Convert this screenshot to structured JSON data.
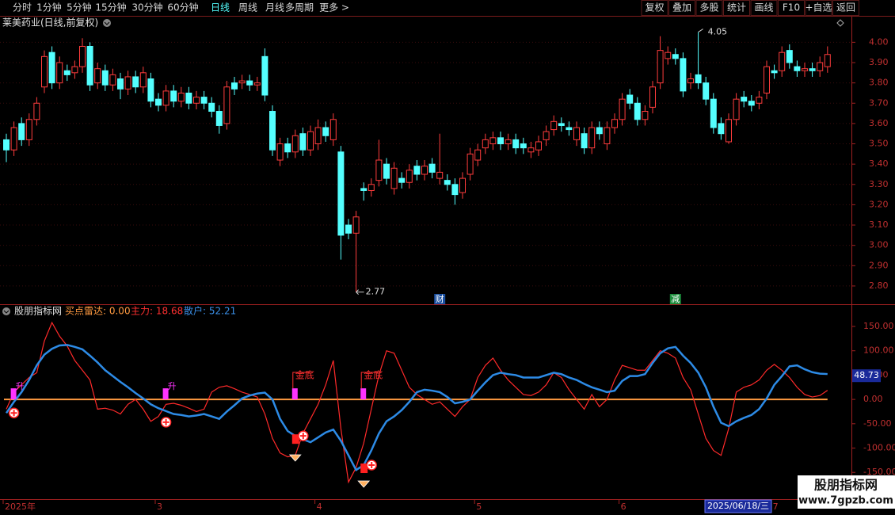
{
  "toolbar": {
    "left": [
      "分时",
      "1分钟",
      "5分钟",
      "15分钟",
      "30分钟",
      "60分钟",
      "日线",
      "周线",
      "月线",
      "多周期",
      "更多 >"
    ],
    "right": [
      "复权",
      "叠加",
      "多股",
      "统计",
      "画线",
      "F10",
      "+自选",
      "返回"
    ]
  },
  "chart_data": [
    {
      "type": "candlestick",
      "title": "莱美药业(日线,前复权)",
      "categories": [
        "2025年",
        null,
        null,
        null,
        null,
        null,
        null,
        null,
        null,
        null,
        null,
        null,
        null,
        null,
        null,
        null,
        null,
        null,
        null,
        null,
        "3",
        null,
        null,
        null,
        null,
        null,
        null,
        null,
        null,
        null,
        null,
        null,
        null,
        null,
        null,
        null,
        null,
        null,
        null,
        null,
        null,
        "4",
        null,
        null,
        null,
        null,
        null,
        null,
        null,
        null,
        null,
        null,
        null,
        null,
        null,
        null,
        null,
        null,
        null,
        null,
        null,
        null,
        "5",
        null,
        null,
        null,
        null,
        null,
        null,
        null,
        null,
        null,
        null,
        null,
        null,
        null,
        null,
        null,
        null,
        null,
        null,
        "6",
        null,
        null,
        null,
        null,
        null,
        null,
        null,
        null,
        null,
        null,
        null,
        null,
        null,
        null,
        null,
        null,
        null,
        null,
        null,
        "7",
        null,
        null,
        null,
        null,
        null,
        null,
        null
      ],
      "open": [
        3.52,
        3.47,
        3.6,
        3.52,
        3.62,
        3.78,
        3.95,
        3.8,
        3.86,
        3.85,
        3.88,
        3.98,
        3.8,
        3.86,
        3.79,
        3.82,
        3.77,
        3.83,
        3.78,
        3.82,
        3.72,
        3.69,
        3.76,
        3.71,
        3.75,
        3.7,
        3.73,
        3.7,
        3.66,
        3.6,
        3.8,
        3.8,
        3.81,
        3.79,
        3.93,
        3.66,
        3.42,
        3.5,
        3.46,
        3.55,
        3.47,
        3.5,
        3.58,
        3.52,
        3.46,
        3.1,
        3.06,
        3.28,
        3.27,
        3.32,
        3.4,
        3.28,
        3.33,
        3.31,
        3.39,
        3.35,
        3.4,
        3.33,
        3.32,
        3.3,
        3.26,
        3.35,
        3.42,
        3.48,
        3.5,
        3.53,
        3.5,
        3.52,
        3.5,
        3.46,
        3.47,
        3.52,
        3.57,
        3.6,
        3.58,
        3.52,
        3.55,
        3.48,
        3.58,
        3.5,
        3.58,
        3.62,
        3.74,
        3.7,
        3.62,
        3.68,
        3.8,
        3.92,
        3.94,
        3.92,
        3.8,
        3.84,
        3.8,
        3.72,
        3.6,
        3.51,
        3.62,
        3.73,
        3.71,
        3.7,
        3.75,
        3.86,
        3.86,
        3.96,
        3.88,
        3.86,
        3.87,
        3.86,
        3.88
      ],
      "high": [
        3.55,
        3.61,
        3.63,
        3.65,
        3.73,
        3.96,
        3.98,
        3.93,
        3.89,
        3.91,
        4.02,
        4.0,
        3.9,
        3.89,
        3.87,
        3.85,
        3.86,
        3.86,
        3.88,
        3.85,
        3.75,
        3.79,
        3.79,
        3.78,
        3.78,
        3.76,
        3.76,
        3.73,
        3.69,
        3.81,
        3.83,
        3.84,
        3.84,
        3.83,
        3.97,
        3.69,
        3.53,
        3.53,
        3.57,
        3.58,
        3.59,
        3.62,
        3.61,
        3.65,
        3.49,
        3.13,
        3.17,
        3.31,
        3.33,
        3.52,
        3.43,
        3.41,
        3.36,
        3.4,
        3.42,
        3.42,
        3.43,
        3.55,
        3.35,
        3.33,
        3.36,
        3.48,
        3.5,
        3.55,
        3.56,
        3.56,
        3.55,
        3.55,
        3.53,
        3.51,
        3.54,
        3.59,
        3.64,
        3.63,
        3.61,
        3.61,
        3.58,
        3.61,
        3.61,
        3.61,
        3.65,
        3.75,
        3.77,
        3.73,
        3.69,
        3.81,
        4.03,
        3.98,
        3.97,
        3.95,
        3.85,
        4.05,
        3.83,
        3.75,
        3.63,
        3.65,
        3.75,
        3.76,
        3.74,
        3.76,
        3.91,
        3.89,
        3.98,
        3.99,
        3.91,
        3.9,
        3.9,
        3.93,
        3.98
      ],
      "low": [
        3.41,
        3.44,
        3.49,
        3.49,
        3.59,
        3.75,
        3.77,
        3.77,
        3.81,
        3.82,
        3.85,
        3.76,
        3.77,
        3.76,
        3.76,
        3.72,
        3.74,
        3.75,
        3.75,
        3.68,
        3.66,
        3.66,
        3.68,
        3.68,
        3.67,
        3.67,
        3.67,
        3.63,
        3.55,
        3.57,
        3.74,
        3.77,
        3.76,
        3.76,
        3.71,
        3.44,
        3.39,
        3.43,
        3.43,
        3.44,
        3.44,
        3.47,
        3.51,
        3.49,
        2.93,
        3.03,
        2.77,
        3.22,
        3.24,
        3.29,
        3.3,
        3.25,
        3.28,
        3.28,
        3.32,
        3.32,
        3.33,
        3.3,
        3.27,
        3.2,
        3.23,
        3.32,
        3.39,
        3.45,
        3.47,
        3.47,
        3.47,
        3.45,
        3.45,
        3.43,
        3.44,
        3.49,
        3.54,
        3.56,
        3.54,
        3.49,
        3.45,
        3.45,
        3.52,
        3.47,
        3.55,
        3.59,
        3.67,
        3.59,
        3.59,
        3.65,
        3.77,
        3.89,
        3.89,
        3.73,
        3.77,
        3.77,
        3.69,
        3.55,
        3.52,
        3.5,
        3.59,
        3.68,
        3.66,
        3.67,
        3.72,
        3.82,
        3.83,
        3.87,
        3.83,
        3.83,
        3.83,
        3.83,
        3.85
      ],
      "close": [
        3.47,
        3.58,
        3.52,
        3.62,
        3.7,
        3.93,
        3.8,
        3.9,
        3.84,
        3.88,
        3.98,
        3.79,
        3.87,
        3.79,
        3.84,
        3.77,
        3.83,
        3.78,
        3.85,
        3.71,
        3.69,
        3.76,
        3.71,
        3.75,
        3.7,
        3.73,
        3.7,
        3.66,
        3.59,
        3.78,
        3.77,
        3.81,
        3.79,
        3.8,
        3.74,
        3.47,
        3.5,
        3.46,
        3.54,
        3.47,
        3.56,
        3.58,
        3.54,
        3.62,
        3.05,
        3.06,
        3.14,
        3.27,
        3.3,
        3.42,
        3.33,
        3.38,
        3.31,
        3.37,
        3.35,
        3.39,
        3.36,
        3.36,
        3.3,
        3.25,
        3.33,
        3.45,
        3.47,
        3.52,
        3.53,
        3.5,
        3.52,
        3.48,
        3.48,
        3.48,
        3.51,
        3.56,
        3.61,
        3.59,
        3.57,
        3.58,
        3.48,
        3.58,
        3.55,
        3.58,
        3.62,
        3.72,
        3.7,
        3.62,
        3.66,
        3.78,
        3.96,
        3.95,
        3.92,
        3.76,
        3.82,
        3.8,
        3.72,
        3.58,
        3.55,
        3.62,
        3.72,
        3.71,
        3.69,
        3.73,
        3.88,
        3.85,
        3.95,
        3.9,
        3.86,
        3.87,
        3.86,
        3.9,
        3.94
      ],
      "up_color": "#ff3c3c",
      "down_color": "#54ffff",
      "ylim": [
        2.71,
        4.06
      ],
      "yticks": [
        {
          "value": 2.8,
          "label": "2.80"
        },
        {
          "value": 2.9,
          "label": "2.90"
        },
        {
          "value": 3.0,
          "label": "3.00"
        },
        {
          "value": 3.1,
          "label": "3.10"
        },
        {
          "value": 3.2,
          "label": "3.20"
        },
        {
          "value": 3.3,
          "label": "3.30"
        },
        {
          "value": 3.4,
          "label": "3.40"
        },
        {
          "value": 3.5,
          "label": "3.50"
        },
        {
          "value": 3.6,
          "label": "3.60"
        },
        {
          "value": 3.7,
          "label": "3.70"
        },
        {
          "value": 3.8,
          "label": "3.80"
        },
        {
          "value": 3.9,
          "label": "3.90"
        },
        {
          "value": 4.0,
          "label": "4.00"
        }
      ],
      "grid": true,
      "events": [
        "财",
        "减"
      ]
    },
    {
      "type": "line",
      "title": "股朋指标网",
      "readouts": [
        "买点雷达: 0.00",
        "主力: 18.68",
        "散户: 52.21"
      ],
      "series": [
        {
          "name": "主力",
          "color": "#ff2a2a",
          "values": [
            -20,
            15,
            30,
            45,
            55,
            120,
            158,
            130,
            110,
            80,
            60,
            40,
            -20,
            -18,
            -22,
            -30,
            -10,
            0,
            -20,
            -45,
            -35,
            -10,
            -8,
            -12,
            -18,
            -25,
            -20,
            15,
            25,
            28,
            22,
            15,
            10,
            5,
            -30,
            -80,
            -110,
            -118,
            -115,
            -70,
            -40,
            -10,
            30,
            80,
            -60,
            -170,
            -140,
            -90,
            -20,
            50,
            100,
            95,
            60,
            25,
            10,
            0,
            -10,
            -5,
            -20,
            -35,
            -15,
            0,
            45,
            70,
            85,
            60,
            40,
            25,
            10,
            8,
            15,
            30,
            55,
            45,
            20,
            0,
            -20,
            10,
            -15,
            0,
            40,
            70,
            65,
            60,
            60,
            80,
            100,
            95,
            85,
            45,
            20,
            -30,
            -80,
            -105,
            -115,
            -60,
            15,
            25,
            30,
            40,
            60,
            72,
            60,
            45,
            25,
            10,
            5,
            8,
            18.68
          ]
        },
        {
          "name": "散户",
          "color": "#2d8be6",
          "values": [
            -28,
            -5,
            15,
            40,
            70,
            92,
            104,
            111,
            112,
            108,
            103,
            90,
            76,
            60,
            48,
            36,
            25,
            13,
            2,
            -10,
            -18,
            -24,
            -30,
            -32,
            -35,
            -33,
            -30,
            -35,
            -40,
            -25,
            -12,
            2,
            8,
            12,
            14,
            0,
            -40,
            -65,
            -75,
            -82,
            -88,
            -78,
            -68,
            -62,
            -85,
            -115,
            -145,
            -135,
            -105,
            -70,
            -45,
            -35,
            -22,
            -5,
            15,
            20,
            18,
            15,
            5,
            -8,
            -5,
            0,
            18,
            35,
            50,
            55,
            52,
            50,
            45,
            45,
            45,
            50,
            55,
            52,
            45,
            40,
            32,
            25,
            20,
            15,
            18,
            38,
            48,
            48,
            52,
            75,
            95,
            105,
            108,
            90,
            75,
            55,
            25,
            -15,
            -48,
            -55,
            -45,
            -38,
            -32,
            -20,
            2,
            30,
            48,
            68,
            70,
            62,
            56,
            53,
            52.21
          ]
        }
      ],
      "ylim": [
        -205,
        194
      ],
      "yticks": [
        {
          "value": 150,
          "label": "150.00"
        },
        {
          "value": 100,
          "label": "100.00"
        },
        {
          "value": 50,
          "label": "50.00"
        },
        {
          "value": 0,
          "label": "0.00"
        },
        {
          "value": -50,
          "label": "-50.00"
        },
        {
          "value": -100,
          "label": "-100.00"
        },
        {
          "value": -150,
          "label": "-150.00"
        }
      ],
      "zero_line_color": "#ff9a40",
      "signals": [
        "升",
        "升",
        "金底",
        "金底"
      ],
      "cursor": {
        "value": 48.73,
        "label": "48.73",
        "date": "2025/06/18/三"
      }
    }
  ],
  "watermark": {
    "name": "股朋指标网",
    "url": "www.7gpzb.com"
  }
}
